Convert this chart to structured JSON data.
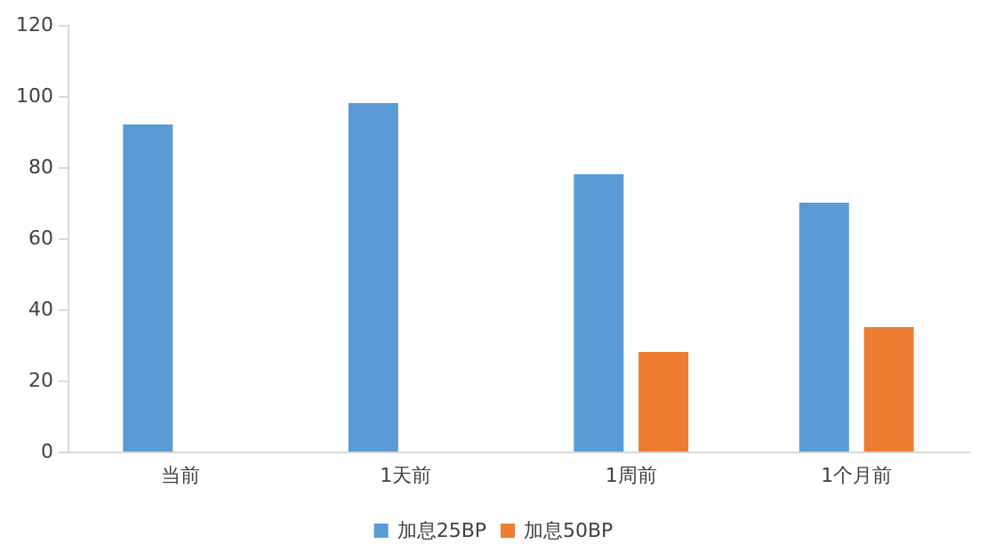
{
  "chart_data": {
    "type": "bar",
    "categories": [
      "当前",
      "1天前",
      "1周前",
      "1个月前"
    ],
    "series": [
      {
        "name": "加息25BP",
        "color": "#5b9bd5",
        "values": [
          92,
          98,
          78,
          70
        ]
      },
      {
        "name": "加息50BP",
        "color": "#ed7d31",
        "values": [
          null,
          null,
          28,
          35
        ]
      }
    ],
    "ylim": [
      0,
      120
    ],
    "yticks": [
      0,
      20,
      40,
      60,
      80,
      100,
      120
    ],
    "grid": false,
    "legend": "bottom"
  }
}
